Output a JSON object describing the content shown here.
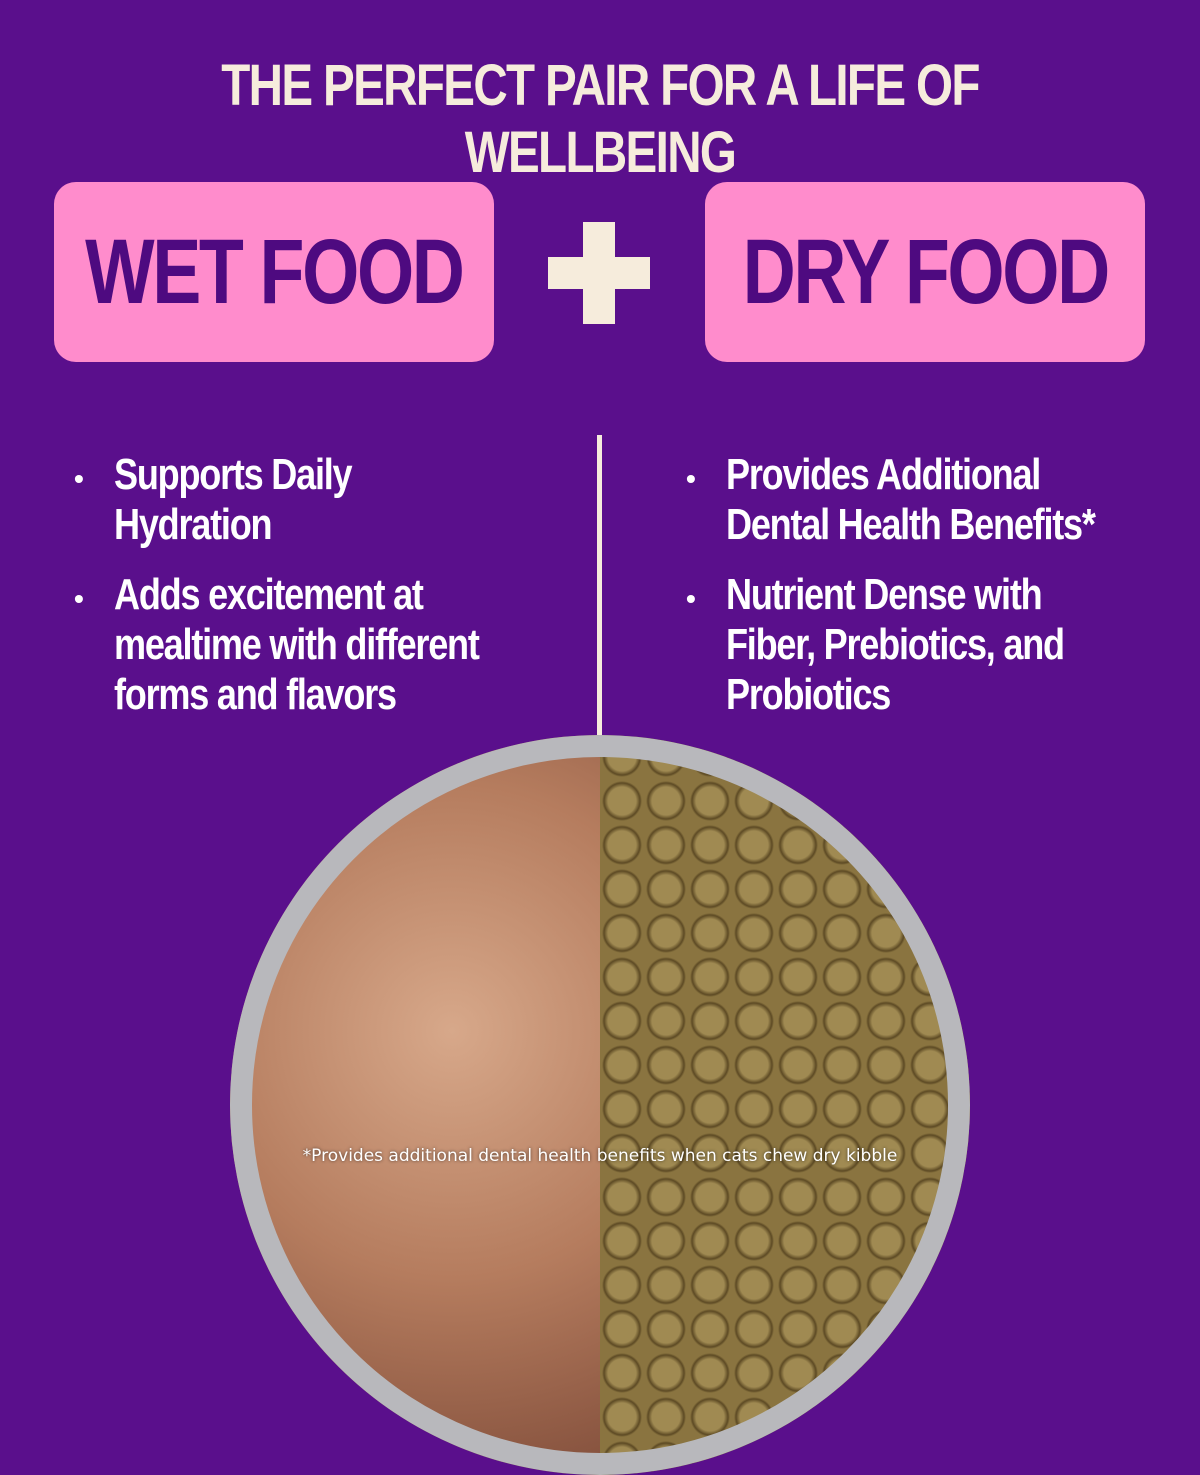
{
  "title": "THE PERFECT PAIR FOR A LIFE OF WELLBEING",
  "colors": {
    "background": "#5a0f8c",
    "box": "#ff8ccc",
    "box_text": "#4e0a80",
    "cream": "#f6ecdc"
  },
  "left": {
    "label": "WET FOOD",
    "bullets": [
      "Supports Daily Hydration",
      "Adds excitement at mealtime with different forms and flavors"
    ]
  },
  "right": {
    "label": "DRY FOOD",
    "bullets": [
      "Provides Additional Dental Health Benefits*",
      "Nutrient Dense with Fiber,  Prebiotics, and Probiotics"
    ]
  },
  "footnote": "*Provides additional dental health benefits when cats chew dry kibble"
}
